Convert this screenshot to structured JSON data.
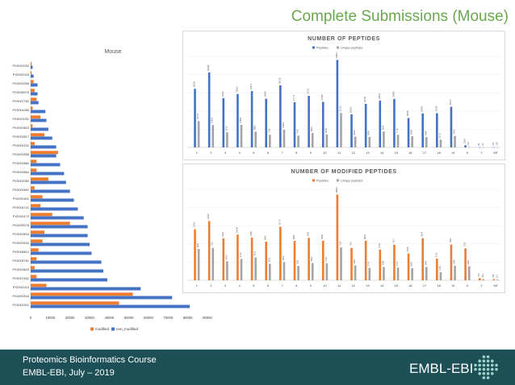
{
  "slide": {
    "title": "Complete Submissions (Mouse)"
  },
  "footer": {
    "line1": "Proteomics Bioinformatics Course",
    "line2": "EMBL-EBI, July – 2019",
    "logo_text": "EMBL-EBI"
  },
  "colors": {
    "blue": "#4472c4",
    "orange": "#ed7d31",
    "gray": "#a5a5a5",
    "footer_bg": "#1d4f57",
    "title_green": "#6aa84f"
  },
  "chart_data": [
    {
      "type": "bar",
      "orientation": "horizontal",
      "title": "Mouse",
      "categories": [
        "PXD001901",
        "PXD002543",
        "PXD002115",
        "PXD007591",
        "PXD003625",
        "PXD006781",
        "PXD008812",
        "PXD003200",
        "PXD003634",
        "PXD005078",
        "PXD001170",
        "PXD004741",
        "PXD001811",
        "PXD004662",
        "PXD003382",
        "PXD003664",
        "PXD002882",
        "PXD003558",
        "PXD004202",
        "PXD003517",
        "PXD003823",
        "PXD003331",
        "PXD004486",
        "PXD007762",
        "PXD006075",
        "PXD003356",
        "PXD002118",
        "PXD002032"
      ],
      "series": [
        {
          "name": "non_modified",
          "values": [
            81000,
            72000,
            56000,
            39000,
            37000,
            36000,
            31000,
            30000,
            29000,
            29000,
            27000,
            24000,
            22000,
            20000,
            18000,
            17000,
            15000,
            13000,
            13000,
            11000,
            9000,
            8000,
            7500,
            4000,
            3500,
            3500,
            1500,
            1000
          ]
        },
        {
          "name": "modified",
          "values": [
            45000,
            52000,
            8000,
            3000,
            2000,
            3000,
            4000,
            6000,
            7000,
            20000,
            11000,
            5000,
            6000,
            2000,
            9000,
            3000,
            3000,
            14000,
            2000,
            7000,
            1000,
            5000,
            1000,
            3000,
            2000,
            1500,
            500,
            500
          ]
        }
      ],
      "xlim": [
        0,
        90000
      ],
      "xticks": [
        "0",
        "10000",
        "20000",
        "30000",
        "40000",
        "50000",
        "60000",
        "70000",
        "80000",
        "90000"
      ],
      "legend": "bottom",
      "legend_labels": [
        "modified",
        "non_modified"
      ],
      "grid": false
    },
    {
      "type": "bar",
      "title": "NUMBER OF PEPTIDES",
      "categories": [
        "1",
        "2",
        "3",
        "4",
        "5",
        "6",
        "7",
        "8",
        "9",
        "10",
        "11",
        "12",
        "13",
        "14",
        "15",
        "16",
        "17",
        "18",
        "19",
        "X",
        "Y",
        "MT"
      ],
      "series": [
        {
          "name": "Peptides",
          "values": [
            36038,
            46098,
            30307,
            32853,
            34673,
            29984,
            38218,
            27775,
            31725,
            27968,
            53851,
            20306,
            26769,
            28811,
            29864,
            18095,
            20903,
            21039,
            25013,
            1358,
            96,
            121
          ],
          "labels": [
            "36038",
            "46098",
            "30307",
            "32853",
            "34673",
            "29984",
            "38218",
            "27775",
            "31725",
            "27968",
            "53851",
            "20306",
            "26769",
            "28811",
            "29864",
            "18095",
            "20903",
            "21039",
            "25013",
            "1358",
            "96",
            "121"
          ]
        },
        {
          "name": "Unique peptides",
          "values": [
            16178,
            13803,
            9276,
            13858,
            9683,
            7766,
            10862,
            7241,
            8823,
            8032,
            21151,
            6626,
            6459,
            9826,
            7778,
            6908,
            6386,
            4770,
            7062,
            213,
            41,
            116
          ],
          "labels": [
            "16178",
            "13803",
            "9276",
            "13858",
            "9683",
            "7766",
            "10862",
            "7241",
            "8823",
            "8032",
            "21151",
            "6626",
            "6459",
            "9826",
            "7778",
            "6908",
            "6386",
            "4770",
            "7062",
            "213",
            "41",
            "116"
          ]
        }
      ],
      "ylim": [
        0,
        56000
      ],
      "legend": "top",
      "legend_labels": [
        "Peptides",
        "Unique peptides"
      ],
      "grid": true
    },
    {
      "type": "bar",
      "title": "NUMBER OF MODIFIED PEPTIDES",
      "categories": [
        "1",
        "2",
        "3",
        "4",
        "5",
        "6",
        "7",
        "8",
        "9",
        "10",
        "11",
        "12",
        "13",
        "14",
        "15",
        "16",
        "17",
        "18",
        "19",
        "X",
        "Y",
        "MT"
      ],
      "series": [
        {
          "name": "Peptides",
          "values": [
            11200,
            13025,
            9233,
            10049,
            9386,
            8491,
            11770,
            8661,
            9331,
            8696,
            18834,
            7121,
            8695,
            6743,
            7827,
            5908,
            9254,
            4751,
            7860,
            7013,
            470,
            226
          ],
          "labels": [
            "11200",
            "13025",
            "9233",
            "10049",
            "9386",
            "8491",
            "11770",
            "8661",
            "9331",
            "8696",
            "18834",
            "7121",
            "8695",
            "6743",
            "7827",
            "5908",
            "9254",
            "4751",
            "7860",
            "7013",
            "470",
            "226"
          ]
        },
        {
          "name": "Unique peptides",
          "values": [
            6897,
            7113,
            4180,
            4710,
            5012,
            3621,
            3990,
            3161,
            3802,
            3746,
            7223,
            3260,
            2741,
            2934,
            2797,
            2663,
            2941,
            1781,
            3183,
            3081,
            261,
            157
          ],
          "labels": [
            "6897",
            "7113",
            "4180",
            "4710",
            "5012",
            "3621",
            "3990",
            "3161",
            "3802",
            "3746",
            "7223",
            "3260",
            "2741",
            "2934",
            "2797",
            "2663",
            "2941",
            "1781",
            "3183",
            "3081",
            "261",
            "157"
          ]
        }
      ],
      "ylim": [
        0,
        20000
      ],
      "legend": "top",
      "legend_labels": [
        "Peptides",
        "Unique peptides"
      ],
      "grid": true
    }
  ]
}
